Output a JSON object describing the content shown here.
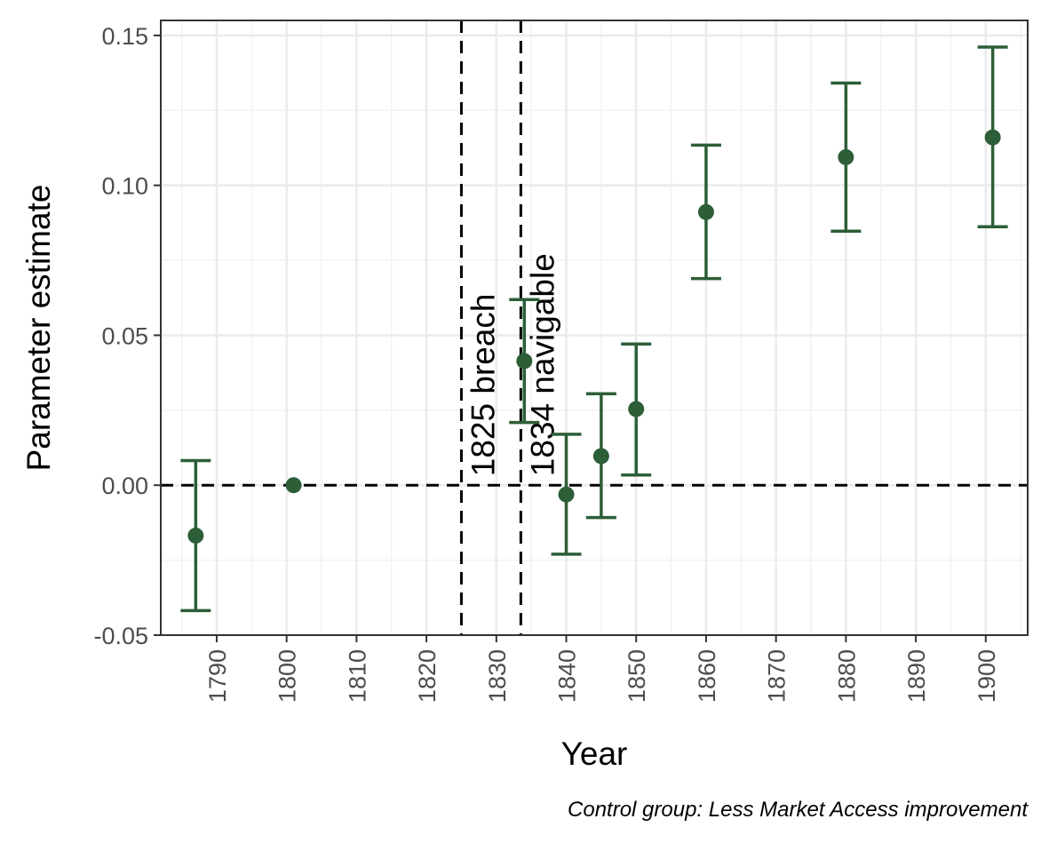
{
  "chart_data": {
    "type": "scatter",
    "title": "",
    "xlabel": "Year",
    "ylabel": "Parameter estimate",
    "caption": "Control group: Less Market Access improvement",
    "xlim": [
      1782,
      1906
    ],
    "ylim": [
      -0.05,
      0.155
    ],
    "x_ticks": [
      1790,
      1800,
      1810,
      1820,
      1830,
      1840,
      1850,
      1860,
      1870,
      1880,
      1890,
      1900
    ],
    "x_tick_labels": [
      "1790",
      "1800",
      "1810",
      "1820",
      "1830",
      "1840",
      "1850",
      "1860",
      "1870",
      "1880",
      "1890",
      "1900"
    ],
    "y_ticks": [
      -0.05,
      0.0,
      0.05,
      0.1,
      0.15
    ],
    "y_tick_labels": [
      "-0.05",
      "0.00",
      "0.05",
      "0.10",
      "0.15"
    ],
    "grid": true,
    "point_color": "#2c5e38",
    "series": [
      {
        "points": [
          {
            "x": 1787,
            "y": -0.0168,
            "lo": -0.0418,
            "hi": 0.0082
          },
          {
            "x": 1801,
            "y": 0.0,
            "lo": null,
            "hi": null
          },
          {
            "x": 1834,
            "y": 0.0414,
            "lo": 0.0209,
            "hi": 0.0619
          },
          {
            "x": 1840,
            "y": -0.0031,
            "lo": -0.023,
            "hi": 0.017
          },
          {
            "x": 1845,
            "y": 0.0097,
            "lo": -0.0108,
            "hi": 0.0305
          },
          {
            "x": 1850,
            "y": 0.0254,
            "lo": 0.0034,
            "hi": 0.0471
          },
          {
            "x": 1860,
            "y": 0.0911,
            "lo": 0.0689,
            "hi": 0.1134
          },
          {
            "x": 1880,
            "y": 0.1094,
            "lo": 0.0847,
            "hi": 0.1341
          },
          {
            "x": 1901,
            "y": 0.116,
            "lo": 0.0862,
            "hi": 0.1461
          }
        ]
      }
    ],
    "reference_lines": {
      "horizontal": [
        {
          "y": 0.0,
          "style": "dashed"
        }
      ],
      "vertical": [
        {
          "x": 1825,
          "label": "1825 breach",
          "style": "dashed"
        },
        {
          "x": 1833.5,
          "label": "1834 navigable",
          "style": "dashed"
        }
      ]
    }
  }
}
